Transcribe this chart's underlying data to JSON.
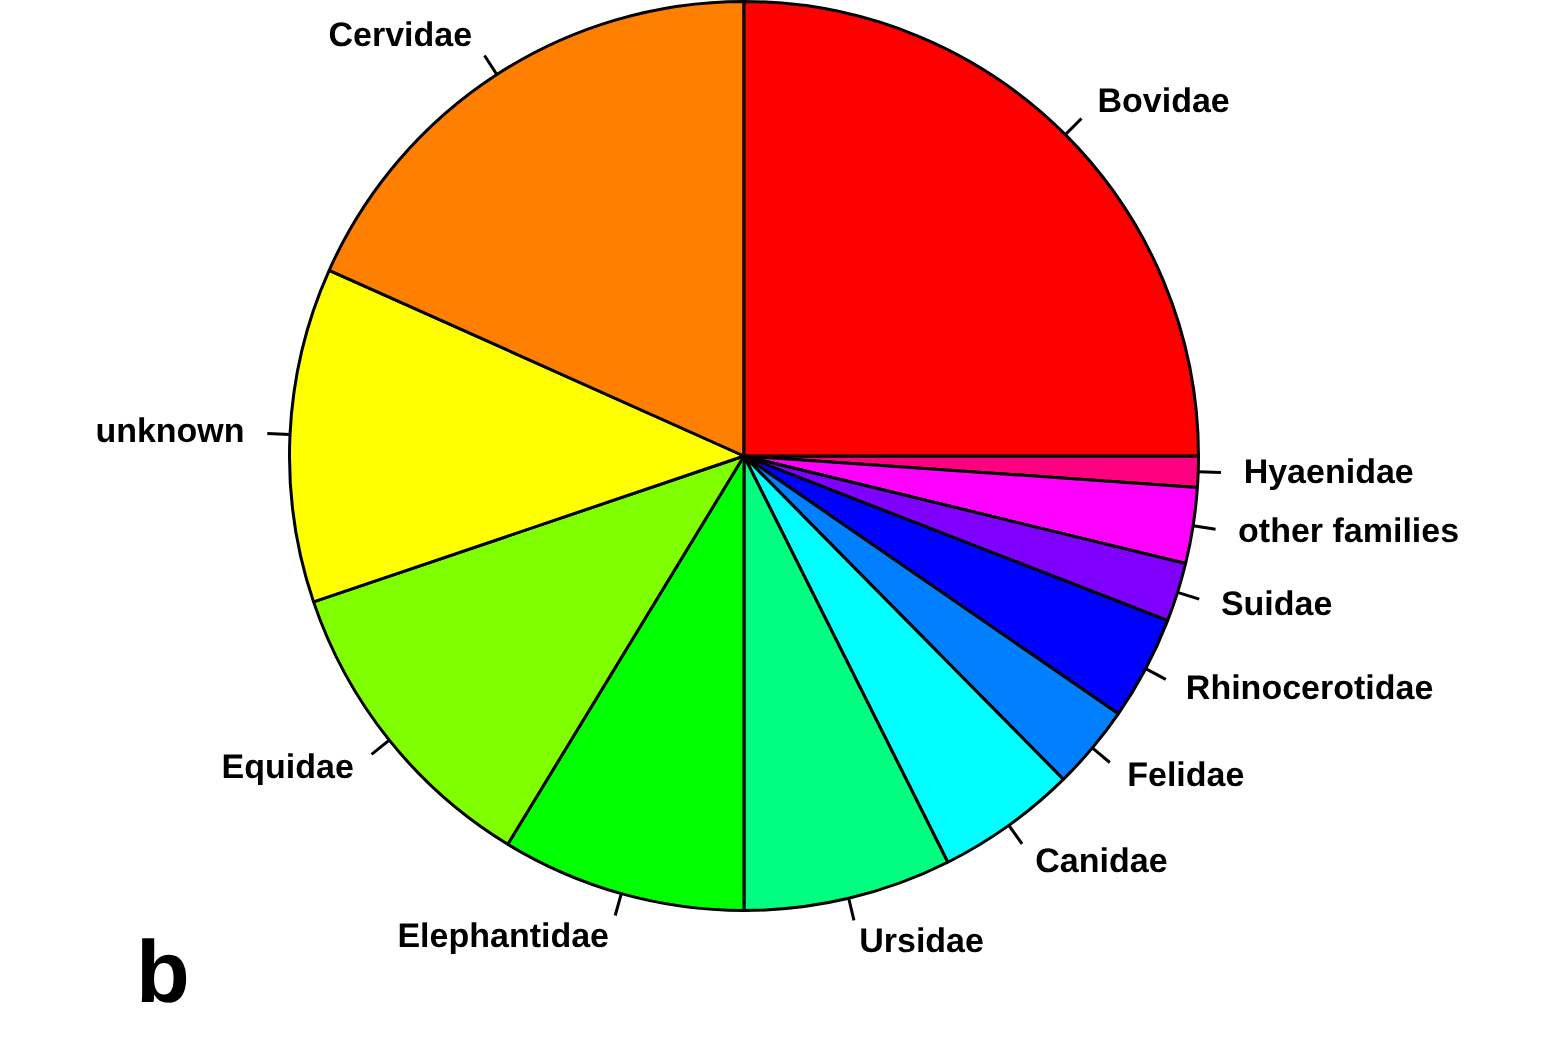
{
  "chart_data": {
    "type": "pie",
    "categories": [
      "Bovidae",
      "Cervidae",
      "unknown",
      "Equidae",
      "Elephantidae",
      "Ursidae",
      "Canidae",
      "Felidae",
      "Rhinocerotidae",
      "Suidae",
      "other families",
      "Hyaenidae"
    ],
    "values": [
      25,
      18.3,
      11.9,
      11.1,
      8.7,
      7.4,
      5,
      3,
      3.7,
      2.1,
      2.7,
      1.1
    ],
    "colors": [
      "#ff0000",
      "#ff8000",
      "#ffff00",
      "#80ff00",
      "#00ff00",
      "#00ff80",
      "#00ffff",
      "#0080ff",
      "#0000ff",
      "#8000ff",
      "#ff00ff",
      "#ff0080"
    ],
    "legend": false,
    "annotations": [
      "b"
    ]
  }
}
